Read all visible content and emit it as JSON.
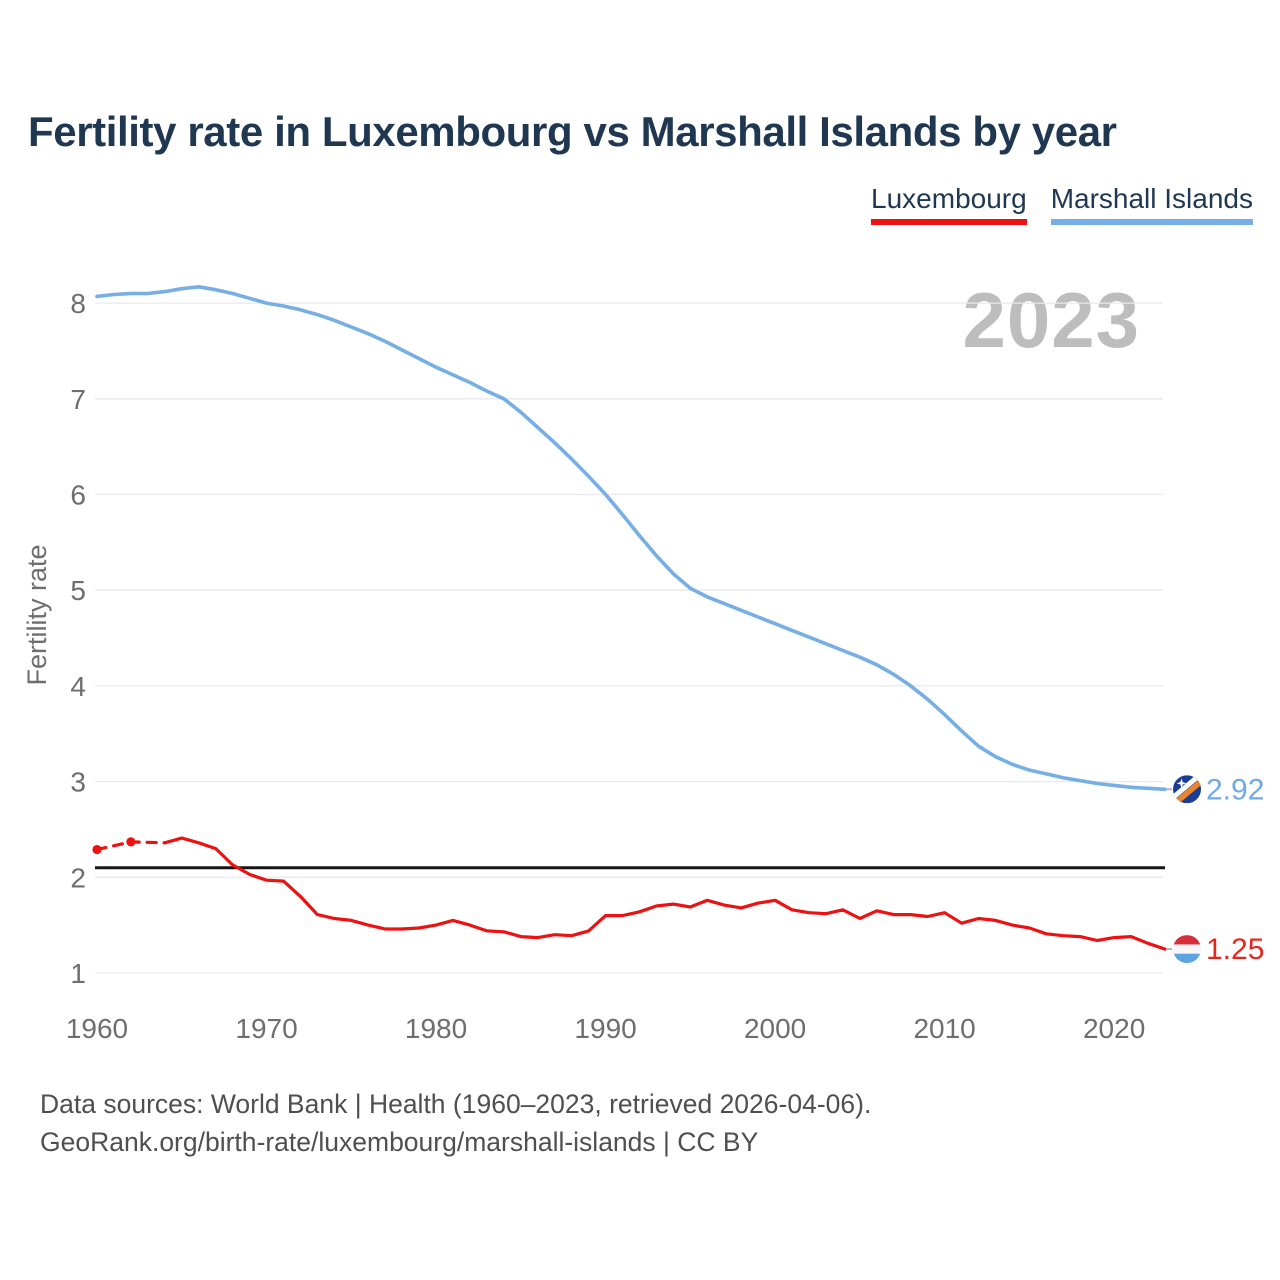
{
  "title": "Fertility rate in Luxembourg vs Marshall Islands by year",
  "watermark": "2023",
  "legend": [
    {
      "label": "Luxembourg",
      "color": "#ee1111"
    },
    {
      "label": "Marshall Islands",
      "color": "#76aee6"
    }
  ],
  "footer": {
    "line1": "Data sources: World Bank | Health (1960–2023, retrieved 2026-04-06).",
    "line2": "GeoRank.org/birth-rate/luxembourg/marshall-islands | CC BY"
  },
  "icons": {
    "luxembourg": "luxembourg-flag-icon",
    "marshall_islands": "marshall-islands-flag-icon"
  },
  "chart_data": {
    "type": "line",
    "title": "Fertility rate in Luxembourg vs Marshall Islands by year",
    "xlabel": "",
    "ylabel": "Fertility rate",
    "ylim": [
      1,
      8.45
    ],
    "y_ticks": [
      1,
      2,
      3,
      4,
      5,
      6,
      7,
      8
    ],
    "x_ticks": [
      1960,
      1970,
      1980,
      1990,
      2000,
      2010,
      2020
    ],
    "x_range": [
      1960,
      2023
    ],
    "grid": "horizontal",
    "legend_position": "top-right",
    "reference_line": {
      "value": 2.1,
      "color": "#161616"
    },
    "years": [
      1960,
      1961,
      1962,
      1963,
      1964,
      1965,
      1966,
      1967,
      1968,
      1969,
      1970,
      1971,
      1972,
      1973,
      1974,
      1975,
      1976,
      1977,
      1978,
      1979,
      1980,
      1981,
      1982,
      1983,
      1984,
      1985,
      1986,
      1987,
      1988,
      1989,
      1990,
      1991,
      1992,
      1993,
      1994,
      1995,
      1996,
      1997,
      1998,
      1999,
      2000,
      2001,
      2002,
      2003,
      2004,
      2005,
      2006,
      2007,
      2008,
      2009,
      2010,
      2011,
      2012,
      2013,
      2014,
      2015,
      2016,
      2017,
      2018,
      2019,
      2020,
      2021,
      2022,
      2023
    ],
    "series": [
      {
        "name": "Luxembourg",
        "color": "#ee1111",
        "label_color": "#e8251c",
        "end_value": 1.25,
        "end_label": "1.25",
        "flag": "luxembourg",
        "dashed_segment_years": [
          1960,
          1962,
          1964
        ],
        "marker_years": [
          1960,
          1962
        ],
        "solid_from_year": 1964,
        "values": [
          2.29,
          2.32,
          2.37,
          2.34,
          2.36,
          2.41,
          2.36,
          2.3,
          2.13,
          2.03,
          1.97,
          1.96,
          1.8,
          1.61,
          1.57,
          1.55,
          1.5,
          1.46,
          1.46,
          1.47,
          1.5,
          1.55,
          1.5,
          1.44,
          1.43,
          1.38,
          1.37,
          1.4,
          1.39,
          1.44,
          1.6,
          1.6,
          1.64,
          1.7,
          1.72,
          1.69,
          1.76,
          1.71,
          1.68,
          1.73,
          1.76,
          1.66,
          1.63,
          1.62,
          1.66,
          1.57,
          1.65,
          1.61,
          1.61,
          1.59,
          1.63,
          1.52,
          1.57,
          1.55,
          1.5,
          1.47,
          1.41,
          1.39,
          1.38,
          1.34,
          1.37,
          1.38,
          1.31,
          1.25
        ]
      },
      {
        "name": "Marshall Islands",
        "color": "#76aee6",
        "label_color": "#6fa9e8",
        "end_value": 2.92,
        "end_label": "2.92",
        "flag": "marshall_islands",
        "values": [
          8.07,
          8.09,
          8.1,
          8.1,
          8.12,
          8.15,
          8.17,
          8.14,
          8.1,
          8.05,
          8.0,
          7.97,
          7.93,
          7.88,
          7.82,
          7.75,
          7.68,
          7.6,
          7.51,
          7.42,
          7.33,
          7.25,
          7.17,
          7.08,
          7.0,
          6.86,
          6.7,
          6.54,
          6.37,
          6.19,
          6.0,
          5.79,
          5.57,
          5.36,
          5.17,
          5.02,
          4.93,
          4.86,
          4.79,
          4.72,
          4.65,
          4.58,
          4.51,
          4.44,
          4.37,
          4.3,
          4.22,
          4.12,
          4.0,
          3.86,
          3.7,
          3.53,
          3.37,
          3.26,
          3.18,
          3.12,
          3.08,
          3.04,
          3.01,
          2.98,
          2.96,
          2.94,
          2.93,
          2.92
        ]
      }
    ]
  }
}
